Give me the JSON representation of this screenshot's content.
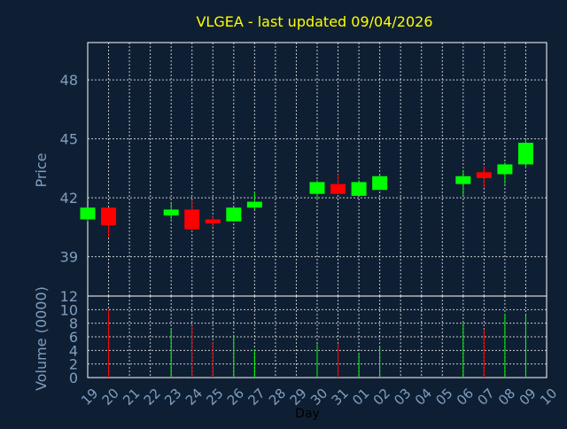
{
  "chart_data": {
    "type": "candlestick",
    "title": "VLGEA - last updated 09/04/2026",
    "xlabel": "Day",
    "x_ticks": [
      "19",
      "20",
      "21",
      "22",
      "23",
      "24",
      "25",
      "26",
      "27",
      "28",
      "29",
      "30",
      "31",
      "01",
      "02",
      "03",
      "04",
      "05",
      "06",
      "07",
      "08",
      "09",
      "10"
    ],
    "colors": {
      "up": "#00ff00",
      "down": "#ff0000",
      "grid": "#ffffff",
      "axis_text": "#7f9fbf",
      "title": "#ffff00",
      "background": "#0f1f33"
    },
    "price_panel": {
      "ylabel": "Price",
      "y_ticks": [
        39,
        42,
        45,
        48
      ],
      "ylim": [
        37.0,
        49.9
      ],
      "candles": [
        {
          "day": "19",
          "open": 40.9,
          "high": 41.5,
          "low": 40.8,
          "close": 41.5
        },
        {
          "day": "20",
          "open": 41.5,
          "high": 41.5,
          "low": 40.0,
          "close": 40.6
        },
        {
          "day": "23",
          "open": 41.1,
          "high": 41.7,
          "low": 40.9,
          "close": 41.4
        },
        {
          "day": "24",
          "open": 41.4,
          "high": 41.9,
          "low": 40.3,
          "close": 40.4
        },
        {
          "day": "25",
          "open": 40.9,
          "high": 41.1,
          "low": 40.5,
          "close": 40.7
        },
        {
          "day": "26",
          "open": 40.8,
          "high": 41.5,
          "low": 40.8,
          "close": 41.5
        },
        {
          "day": "27",
          "open": 41.5,
          "high": 42.3,
          "low": 41.4,
          "close": 41.8
        },
        {
          "day": "30",
          "open": 42.2,
          "high": 42.9,
          "low": 41.9,
          "close": 42.8
        },
        {
          "day": "31",
          "open": 42.7,
          "high": 43.2,
          "low": 42.2,
          "close": 42.2
        },
        {
          "day": "01",
          "open": 42.1,
          "high": 42.9,
          "low": 42.1,
          "close": 42.8
        },
        {
          "day": "02",
          "open": 42.4,
          "high": 43.2,
          "low": 42.4,
          "close": 43.1
        },
        {
          "day": "06",
          "open": 42.7,
          "high": 43.4,
          "low": 42.1,
          "close": 43.1
        },
        {
          "day": "07",
          "open": 43.3,
          "high": 43.6,
          "low": 42.5,
          "close": 43.0
        },
        {
          "day": "08",
          "open": 43.2,
          "high": 43.8,
          "low": 42.7,
          "close": 43.7
        },
        {
          "day": "09",
          "open": 43.7,
          "high": 45.0,
          "low": 43.5,
          "close": 44.8
        }
      ]
    },
    "volume_panel": {
      "ylabel": "Volume (0000)",
      "y_ticks": [
        0,
        2,
        4,
        6,
        8,
        10,
        12
      ],
      "ylim": [
        0,
        12
      ],
      "bars": [
        {
          "day": "20",
          "value": 10.0,
          "direction": "down"
        },
        {
          "day": "23",
          "value": 7.3,
          "direction": "up"
        },
        {
          "day": "24",
          "value": 7.7,
          "direction": "down"
        },
        {
          "day": "25",
          "value": 5.2,
          "direction": "down"
        },
        {
          "day": "26",
          "value": 6.3,
          "direction": "up"
        },
        {
          "day": "27",
          "value": 4.1,
          "direction": "up"
        },
        {
          "day": "30",
          "value": 4.9,
          "direction": "up"
        },
        {
          "day": "31",
          "value": 5.0,
          "direction": "down"
        },
        {
          "day": "01",
          "value": 3.6,
          "direction": "up"
        },
        {
          "day": "02",
          "value": 4.7,
          "direction": "up"
        },
        {
          "day": "06",
          "value": 8.0,
          "direction": "up"
        },
        {
          "day": "07",
          "value": 7.1,
          "direction": "down"
        },
        {
          "day": "08",
          "value": 9.4,
          "direction": "up"
        },
        {
          "day": "09",
          "value": 9.2,
          "direction": "up"
        }
      ]
    }
  }
}
